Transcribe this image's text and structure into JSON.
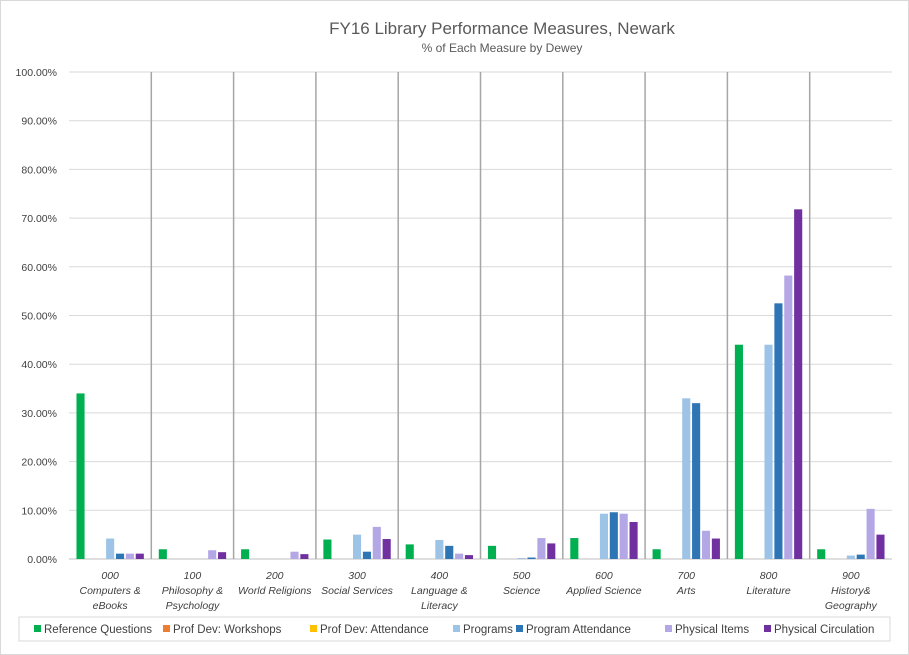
{
  "chart_data": {
    "type": "bar",
    "title": "FY16 Library Performance Measures, Newark",
    "subtitle": "% of Each Measure by Dewey",
    "xlabel": "",
    "ylabel": "",
    "ylim": [
      0,
      100
    ],
    "yticks": [
      "0.00%",
      "10.00%",
      "20.00%",
      "30.00%",
      "40.00%",
      "50.00%",
      "60.00%",
      "70.00%",
      "80.00%",
      "90.00%",
      "100.00%"
    ],
    "categories": [
      [
        "000",
        "Computers &",
        "eBooks"
      ],
      [
        "100",
        "Philosophy &",
        "Psychology"
      ],
      [
        "200",
        "World Religions"
      ],
      [
        "300",
        "Social Services"
      ],
      [
        "400",
        "Language &",
        "Literacy"
      ],
      [
        "500",
        "Science"
      ],
      [
        "600",
        "Applied Science"
      ],
      [
        "700",
        "Arts"
      ],
      [
        "800",
        "Literature"
      ],
      [
        "900",
        "History&",
        "Geography"
      ]
    ],
    "series": [
      {
        "name": "Reference Questions",
        "color": "#00b050",
        "values": [
          34.0,
          2.0,
          2.0,
          4.0,
          3.0,
          2.7,
          4.3,
          2.0,
          44.0,
          2.0
        ]
      },
      {
        "name": "Prof Dev: Workshops",
        "color": "#ed7d31",
        "values": [
          0,
          0,
          0,
          0,
          0,
          0,
          0,
          0,
          0,
          0
        ]
      },
      {
        "name": "Prof Dev: Attendance",
        "color": "#ffc000",
        "values": [
          0,
          0,
          0,
          0,
          0,
          0,
          0,
          0,
          0,
          0
        ]
      },
      {
        "name": "Programs",
        "color": "#9dc3e6",
        "values": [
          4.2,
          0,
          0,
          5.0,
          3.9,
          0.2,
          9.3,
          33.0,
          44.0,
          0.7
        ]
      },
      {
        "name": "Program Attendance",
        "color": "#2e75b6",
        "values": [
          1.1,
          0,
          0,
          1.5,
          2.7,
          0.3,
          9.6,
          32.0,
          52.5,
          0.9
        ]
      },
      {
        "name": "Physical Items",
        "color": "#b4a7e6",
        "values": [
          1.1,
          1.8,
          1.5,
          6.6,
          1.1,
          4.3,
          9.3,
          5.8,
          58.2,
          10.3
        ]
      },
      {
        "name": "Physical Circulation",
        "color": "#7030a0",
        "values": [
          1.1,
          1.4,
          1.0,
          4.1,
          0.8,
          3.2,
          7.6,
          4.2,
          71.8,
          5.0
        ]
      }
    ],
    "legend_position": "bottom",
    "grid": true
  }
}
